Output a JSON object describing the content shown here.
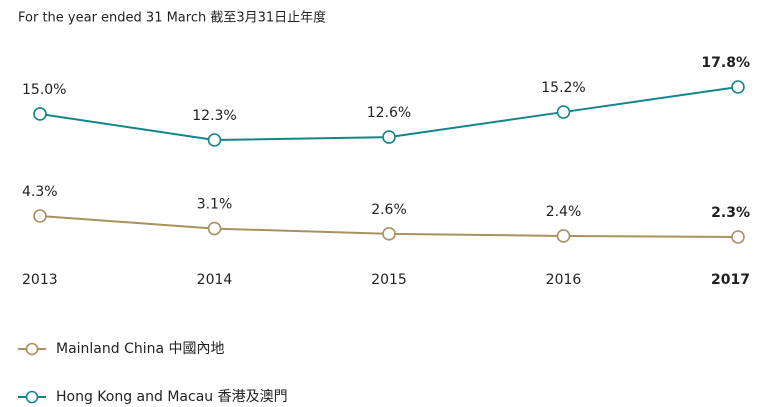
{
  "chart_data": {
    "type": "line",
    "subtitle": "For the year ended 31 March 截至3月31日止年度",
    "categories": [
      "2013",
      "2014",
      "2015",
      "2016",
      "2017"
    ],
    "series": [
      {
        "name": "Mainland China 中國內地",
        "color": "#a8915f",
        "values": [
          4.3,
          3.1,
          2.6,
          2.4,
          2.3
        ],
        "value_labels": [
          "4.3%",
          "3.1%",
          "2.6%",
          "2.4%",
          "2.3%"
        ]
      },
      {
        "name": "Hong Kong and Macau 香港及澳門",
        "color": "#14868a",
        "values": [
          15.0,
          12.3,
          12.6,
          15.2,
          17.8
        ],
        "value_labels": [
          "15.0%",
          "12.3%",
          "12.6%",
          "15.2%",
          "17.8%"
        ]
      }
    ]
  }
}
